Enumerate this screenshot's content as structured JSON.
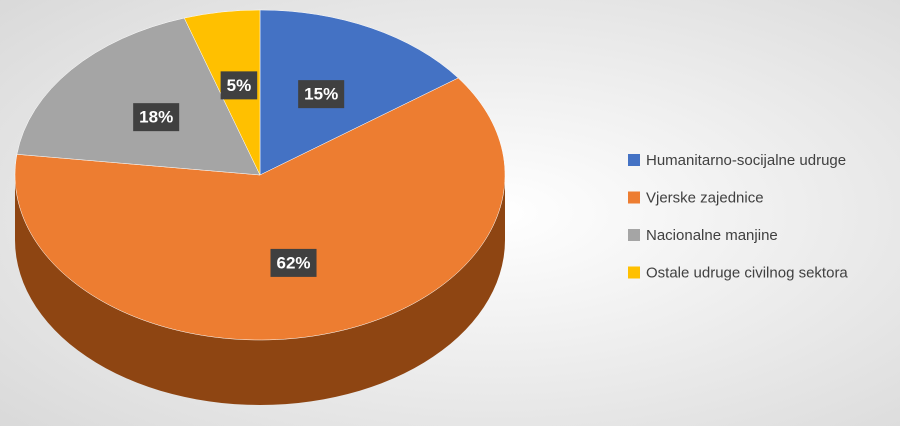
{
  "chart_data": {
    "type": "pie",
    "categories": [
      "Humanitarno-socijalne udruge",
      "Vjerske zajednice",
      "Nacionalne manjine",
      "Ostale udruge civilnog sektora"
    ],
    "values": [
      15,
      62,
      18,
      5
    ],
    "value_labels": [
      "15%",
      "62%",
      "18%",
      "5%"
    ],
    "colors": [
      "#4472c4",
      "#ed7d31",
      "#a5a5a5",
      "#ffc000"
    ],
    "side_colors": [
      "#2e4f8a",
      "#8e4512",
      "#6e6e6e",
      "#a07a00"
    ],
    "legend": "right"
  }
}
